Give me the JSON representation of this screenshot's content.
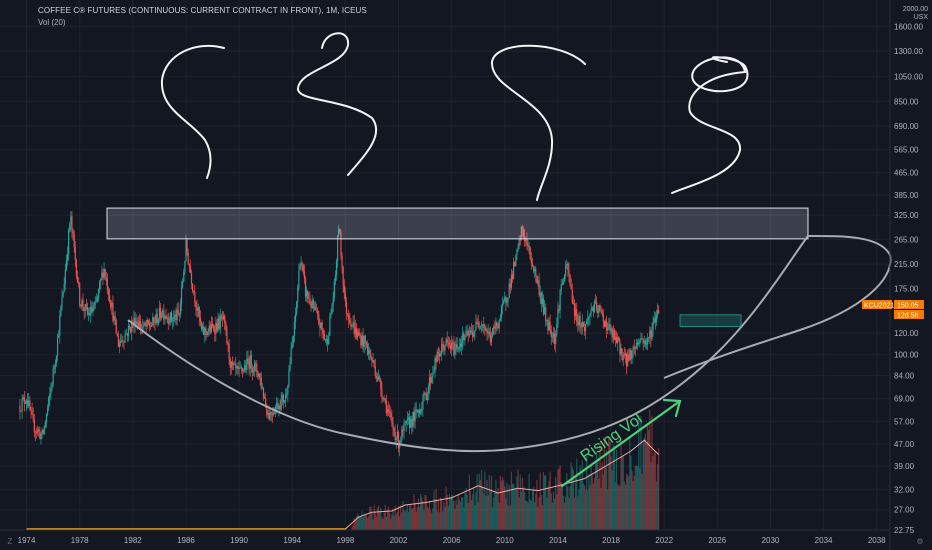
{
  "header": {
    "title": "COFFEE C® FUTURES (CONTINUOUS: CURRENT CONTRACT IN FRONT), 1M, ICEUS",
    "volume_label": "Vol (20)",
    "currency_top": "2000.00",
    "currency_unit": "USX"
  },
  "corner": {
    "left_label": "Z",
    "right_label": "⚙"
  },
  "chart_data": {
    "type": "candlestick",
    "symbol": "KCU2021",
    "last_price": "150.05",
    "countdown": "12d 5h",
    "y_scale": "log",
    "ylim": [
      22.75,
      2000
    ],
    "xlim": [
      1972.0,
      2039.0
    ],
    "y_ticks": [
      "1600.00",
      "1300.00",
      "1050.00",
      "850.00",
      "690.00",
      "565.00",
      "465.00",
      "385.00",
      "325.00",
      "265.00",
      "215.00",
      "175.00",
      "120.00",
      "100.00",
      "84.00",
      "69.00",
      "57.00",
      "47.00",
      "39.00",
      "32.00",
      "27.00",
      "22.75"
    ],
    "x_ticks": [
      "1974",
      "1978",
      "1982",
      "1986",
      "1990",
      "1994",
      "1998",
      "2002",
      "2006",
      "2010",
      "2014",
      "2018",
      "2022",
      "2026",
      "2030",
      "2034",
      "2038"
    ],
    "price_path": [
      [
        1973.5,
        65
      ],
      [
        1974.0,
        70
      ],
      [
        1974.5,
        55
      ],
      [
        1975.2,
        50
      ],
      [
        1975.7,
        68
      ],
      [
        1976.2,
        100
      ],
      [
        1976.8,
        180
      ],
      [
        1977.3,
        320
      ],
      [
        1977.6,
        240
      ],
      [
        1978.0,
        160
      ],
      [
        1978.6,
        140
      ],
      [
        1979.2,
        150
      ],
      [
        1979.8,
        210
      ],
      [
        1980.3,
        160
      ],
      [
        1980.9,
        110
      ],
      [
        1981.5,
        120
      ],
      [
        1982.2,
        135
      ],
      [
        1982.8,
        125
      ],
      [
        1983.5,
        130
      ],
      [
        1984.2,
        145
      ],
      [
        1984.9,
        135
      ],
      [
        1985.5,
        140
      ],
      [
        1986.0,
        250
      ],
      [
        1986.6,
        170
      ],
      [
        1987.2,
        120
      ],
      [
        1988.0,
        125
      ],
      [
        1988.8,
        135
      ],
      [
        1989.4,
        90
      ],
      [
        1990.0,
        85
      ],
      [
        1990.8,
        95
      ],
      [
        1991.5,
        85
      ],
      [
        1992.2,
        60
      ],
      [
        1992.8,
        65
      ],
      [
        1993.5,
        70
      ],
      [
        1994.2,
        130
      ],
      [
        1994.6,
        230
      ],
      [
        1995.0,
        170
      ],
      [
        1995.8,
        140
      ],
      [
        1996.6,
        110
      ],
      [
        1997.2,
        180
      ],
      [
        1997.5,
        300
      ],
      [
        1998.0,
        150
      ],
      [
        1998.8,
        120
      ],
      [
        1999.5,
        110
      ],
      [
        2000.2,
        90
      ],
      [
        2000.9,
        70
      ],
      [
        2001.5,
        55
      ],
      [
        2002.0,
        48
      ],
      [
        2002.6,
        55
      ],
      [
        2003.3,
        60
      ],
      [
        2004.0,
        70
      ],
      [
        2004.8,
        95
      ],
      [
        2005.5,
        110
      ],
      [
        2006.2,
        105
      ],
      [
        2006.9,
        115
      ],
      [
        2007.5,
        120
      ],
      [
        2008.2,
        135
      ],
      [
        2008.9,
        115
      ],
      [
        2009.6,
        135
      ],
      [
        2010.3,
        175
      ],
      [
        2010.9,
        230
      ],
      [
        2011.3,
        290
      ],
      [
        2011.8,
        240
      ],
      [
        2012.4,
        190
      ],
      [
        2013.1,
        135
      ],
      [
        2013.8,
        115
      ],
      [
        2014.2,
        175
      ],
      [
        2014.7,
        210
      ],
      [
        2015.3,
        140
      ],
      [
        2016.0,
        125
      ],
      [
        2016.6,
        150
      ],
      [
        2017.1,
        145
      ],
      [
        2017.8,
        125
      ],
      [
        2018.5,
        110
      ],
      [
        2019.1,
        95
      ],
      [
        2019.7,
        105
      ],
      [
        2020.2,
        115
      ],
      [
        2020.7,
        110
      ],
      [
        2021.2,
        130
      ],
      [
        2021.6,
        150
      ]
    ],
    "volume_sma_path": [
      [
        1974.0,
        0
      ],
      [
        1998.0,
        0
      ],
      [
        1999.0,
        0.1
      ],
      [
        2000.0,
        0.14
      ],
      [
        2001.5,
        0.15
      ],
      [
        2002.5,
        0.2
      ],
      [
        2004.0,
        0.22
      ],
      [
        2006.0,
        0.26
      ],
      [
        2008.0,
        0.36
      ],
      [
        2009.5,
        0.3
      ],
      [
        2011.0,
        0.34
      ],
      [
        2012.5,
        0.32
      ],
      [
        2014.0,
        0.36
      ],
      [
        2016.0,
        0.42
      ],
      [
        2018.0,
        0.55
      ],
      [
        2019.5,
        0.65
      ],
      [
        2020.5,
        0.74
      ],
      [
        2021.2,
        0.66
      ],
      [
        2021.6,
        0.62
      ]
    ],
    "annotations": {
      "resistance_zone": [
        266,
        345
      ],
      "rising_vol_text": "Rising Vol",
      "target_box": [
        127,
        140
      ]
    },
    "colors": {
      "up": "#26a69a",
      "down": "#ef5350",
      "background": "#131722",
      "grid": "#2a2e39",
      "price_label_bg": "#f57c00",
      "vol_sma": "#f7a8a8",
      "vol_base": "#f5a623"
    }
  }
}
